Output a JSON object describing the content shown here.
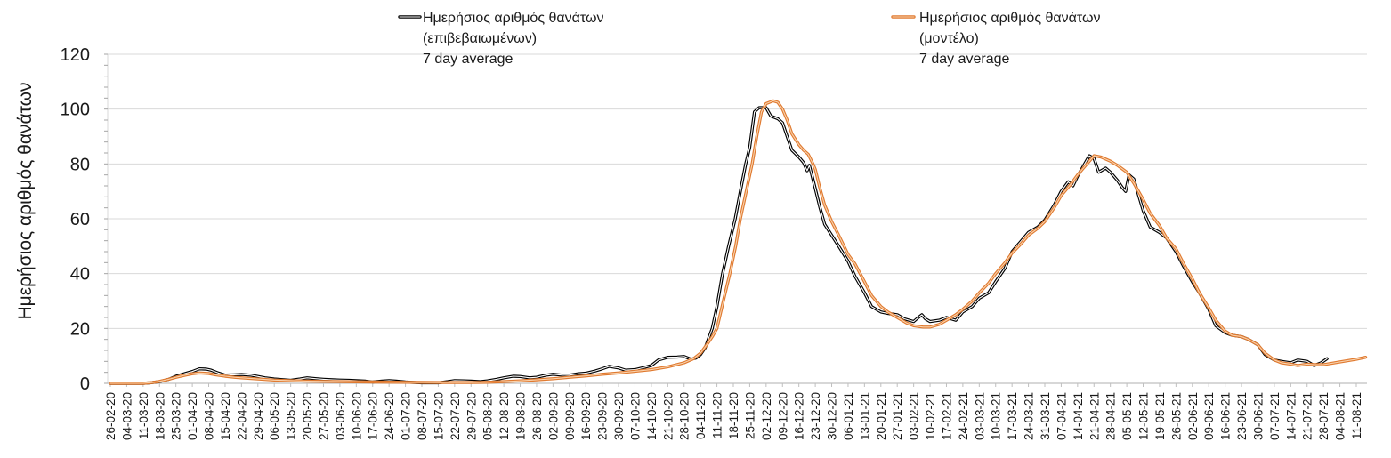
{
  "chart_data": {
    "type": "line",
    "title": "",
    "xlabel": "",
    "ylabel": "Ημερήσιος αριθμός θανάτων",
    "ylim": [
      0,
      120
    ],
    "yticks": [
      0,
      20,
      40,
      60,
      80,
      100,
      120
    ],
    "y_minor_step": 4,
    "grid": true,
    "legend_position": "top",
    "xlim": [
      0,
      536
    ],
    "xtick_step_days": 7,
    "xtick_labels": [
      "26-02-20",
      "04-03-20",
      "11-03-20",
      "18-03-20",
      "25-03-20",
      "01-04-20",
      "08-04-20",
      "15-04-20",
      "22-04-20",
      "29-04-20",
      "06-05-20",
      "13-05-20",
      "20-05-20",
      "27-05-20",
      "03-06-20",
      "10-06-20",
      "17-06-20",
      "24-06-20",
      "01-07-20",
      "08-07-20",
      "15-07-20",
      "22-07-20",
      "29-07-20",
      "05-08-20",
      "12-08-20",
      "19-08-20",
      "26-08-20",
      "02-09-20",
      "09-09-20",
      "16-09-20",
      "23-09-20",
      "30-09-20",
      "07-10-20",
      "14-10-20",
      "21-10-20",
      "28-10-20",
      "04-11-20",
      "11-11-20",
      "18-11-20",
      "25-11-20",
      "02-12-20",
      "09-12-20",
      "16-12-20",
      "23-12-20",
      "30-12-20",
      "06-01-21",
      "13-01-21",
      "20-01-21",
      "27-01-21",
      "03-02-21",
      "10-02-21",
      "17-02-21",
      "24-02-21",
      "03-03-21",
      "10-03-21",
      "17-03-21",
      "24-03-21",
      "31-03-21",
      "07-04-21",
      "14-04-21",
      "21-04-21",
      "28-04-21",
      "05-05-21",
      "12-05-21",
      "19-05-21",
      "26-05-21",
      "02-06-21",
      "09-06-21",
      "16-06-21",
      "23-06-21",
      "30-06-21",
      "07-07-21",
      "14-07-21",
      "21-07-21",
      "28-07-21",
      "04-08-21",
      "11-08-21"
    ],
    "series": [
      {
        "legend": [
          "Ημερήσιος αριθμός θανάτων",
          "(επιβεβαιωμένων)",
          "7 day average"
        ],
        "color": "#000000",
        "highlight": "#ffffff",
        "points": [
          [
            0,
            0
          ],
          [
            7,
            0
          ],
          [
            14,
            0
          ],
          [
            17,
            0.2
          ],
          [
            21,
            0.6
          ],
          [
            25,
            1.5
          ],
          [
            28,
            2.6
          ],
          [
            32,
            3.6
          ],
          [
            35,
            4.3
          ],
          [
            38,
            5.3
          ],
          [
            41,
            5.2
          ],
          [
            43,
            4.8
          ],
          [
            46,
            3.8
          ],
          [
            49,
            3
          ],
          [
            53,
            3.1
          ],
          [
            56,
            3.2
          ],
          [
            60,
            3
          ],
          [
            63,
            2.5
          ],
          [
            66,
            2
          ],
          [
            70,
            1.6
          ],
          [
            74,
            1.3
          ],
          [
            77,
            1.1
          ],
          [
            81,
            1.6
          ],
          [
            84,
            2
          ],
          [
            88,
            1.7
          ],
          [
            91,
            1.5
          ],
          [
            95,
            1.3
          ],
          [
            98,
            1.2
          ],
          [
            102,
            1.1
          ],
          [
            105,
            1
          ],
          [
            109,
            0.8
          ],
          [
            112,
            0.5
          ],
          [
            116,
            0.8
          ],
          [
            119,
            1
          ],
          [
            122,
            0.8
          ],
          [
            126,
            0.5
          ],
          [
            130,
            0.3
          ],
          [
            133,
            0.2
          ],
          [
            140,
            0.2
          ],
          [
            144,
            0.6
          ],
          [
            147,
            1
          ],
          [
            151,
            0.9
          ],
          [
            154,
            0.8
          ],
          [
            158,
            0.6
          ],
          [
            161,
            0.9
          ],
          [
            165,
            1.5
          ],
          [
            168,
            2
          ],
          [
            172,
            2.6
          ],
          [
            175,
            2.5
          ],
          [
            179,
            2
          ],
          [
            182,
            2.2
          ],
          [
            186,
            3
          ],
          [
            189,
            3.3
          ],
          [
            193,
            3
          ],
          [
            196,
            3
          ],
          [
            200,
            3.5
          ],
          [
            203,
            3.7
          ],
          [
            207,
            4.5
          ],
          [
            210,
            5.3
          ],
          [
            213,
            6.2
          ],
          [
            217,
            5.6
          ],
          [
            220,
            4.8
          ],
          [
            224,
            5
          ],
          [
            228,
            5.8
          ],
          [
            231,
            6.5
          ],
          [
            234,
            8.5
          ],
          [
            238,
            9.5
          ],
          [
            242,
            9.6
          ],
          [
            245,
            9.8
          ],
          [
            248,
            8.8
          ],
          [
            250,
            9.2
          ],
          [
            252,
            10.5
          ],
          [
            254,
            13
          ],
          [
            257,
            20
          ],
          [
            259,
            28
          ],
          [
            261.4,
            40
          ],
          [
            264,
            50
          ],
          [
            266.8,
            60
          ],
          [
            269,
            70
          ],
          [
            271.3,
            80
          ],
          [
            273,
            86
          ],
          [
            275,
            99
          ],
          [
            277,
            100.5
          ],
          [
            280,
            100.5
          ],
          [
            282,
            97.5
          ],
          [
            285,
            96.5
          ],
          [
            287,
            95
          ],
          [
            289,
            90
          ],
          [
            291,
            85
          ],
          [
            294,
            82.5
          ],
          [
            296,
            80.5
          ],
          [
            297.5,
            77.5
          ],
          [
            298.5,
            79.5
          ],
          [
            301,
            71
          ],
          [
            303,
            64
          ],
          [
            305,
            58
          ],
          [
            308,
            54
          ],
          [
            311,
            50
          ],
          [
            315,
            44.5
          ],
          [
            318,
            39
          ],
          [
            322,
            33
          ],
          [
            325,
            28
          ],
          [
            329,
            26
          ],
          [
            332,
            25.5
          ],
          [
            336,
            25
          ],
          [
            339,
            23.5
          ],
          [
            343,
            22.5
          ],
          [
            345,
            24
          ],
          [
            346.5,
            25
          ],
          [
            348,
            23.5
          ],
          [
            350,
            22.5
          ],
          [
            354,
            23
          ],
          [
            357,
            24
          ],
          [
            361,
            23
          ],
          [
            364,
            26
          ],
          [
            368,
            28
          ],
          [
            371,
            31
          ],
          [
            375,
            33
          ],
          [
            378,
            37
          ],
          [
            382,
            42
          ],
          [
            385,
            48
          ],
          [
            389,
            52
          ],
          [
            392,
            55
          ],
          [
            396,
            57
          ],
          [
            399,
            59.5
          ],
          [
            403,
            65
          ],
          [
            406,
            70
          ],
          [
            409,
            73.5
          ],
          [
            411,
            72
          ],
          [
            413,
            75.5
          ],
          [
            416,
            80
          ],
          [
            418,
            83
          ],
          [
            420,
            82
          ],
          [
            422,
            77
          ],
          [
            425,
            78.5
          ],
          [
            427,
            77
          ],
          [
            430,
            74
          ],
          [
            432,
            71.5
          ],
          [
            433.5,
            70
          ],
          [
            435,
            76
          ],
          [
            437,
            74.5
          ],
          [
            441,
            63
          ],
          [
            444,
            57
          ],
          [
            448,
            55
          ],
          [
            451,
            53
          ],
          [
            455,
            48
          ],
          [
            458,
            43
          ],
          [
            462,
            37
          ],
          [
            465,
            33
          ],
          [
            469,
            27
          ],
          [
            472,
            21
          ],
          [
            476,
            18.5
          ],
          [
            479,
            17.5
          ],
          [
            483,
            17
          ],
          [
            486,
            16
          ],
          [
            490,
            14
          ],
          [
            493,
            10.5
          ],
          [
            497,
            8.5
          ],
          [
            500,
            8
          ],
          [
            504,
            7.5
          ],
          [
            507,
            8.5
          ],
          [
            511,
            8
          ],
          [
            514,
            6.5
          ],
          [
            517,
            7.5
          ],
          [
            519.5,
            9
          ]
        ]
      },
      {
        "legend": [
          "Ημερήσιος αριθμός θανάτων",
          "(μοντέλο)",
          "7 day average"
        ],
        "color": "#e07a30",
        "highlight": "#f9d3ae",
        "points": [
          [
            0,
            0
          ],
          [
            14,
            0
          ],
          [
            18,
            0.3
          ],
          [
            21,
            0.7
          ],
          [
            25,
            1.5
          ],
          [
            28,
            2.2
          ],
          [
            32,
            3
          ],
          [
            35,
            3.5
          ],
          [
            38,
            3.8
          ],
          [
            42,
            3.6
          ],
          [
            45,
            3.1
          ],
          [
            49,
            2.6
          ],
          [
            53,
            2.2
          ],
          [
            56,
            2
          ],
          [
            63,
            1.6
          ],
          [
            70,
            1.2
          ],
          [
            77,
            1
          ],
          [
            84,
            0.8
          ],
          [
            91,
            0.7
          ],
          [
            98,
            0.6
          ],
          [
            112,
            0.5
          ],
          [
            126,
            0.4
          ],
          [
            140,
            0.3
          ],
          [
            154,
            0.3
          ],
          [
            161,
            0.4
          ],
          [
            168,
            0.6
          ],
          [
            175,
            0.9
          ],
          [
            182,
            1.3
          ],
          [
            189,
            1.7
          ],
          [
            196,
            2.2
          ],
          [
            203,
            2.7
          ],
          [
            210,
            3.3
          ],
          [
            217,
            3.8
          ],
          [
            224,
            4.4
          ],
          [
            231,
            5
          ],
          [
            238,
            6
          ],
          [
            245,
            7.5
          ],
          [
            249,
            9
          ],
          [
            252,
            11
          ],
          [
            255,
            14.5
          ],
          [
            257,
            17
          ],
          [
            259,
            20
          ],
          [
            262,
            31
          ],
          [
            264.5,
            40
          ],
          [
            267,
            50
          ],
          [
            269,
            60
          ],
          [
            271.5,
            70
          ],
          [
            274,
            80
          ],
          [
            276,
            90
          ],
          [
            278,
            99
          ],
          [
            280,
            102
          ],
          [
            283,
            103
          ],
          [
            285,
            102.5
          ],
          [
            287,
            100
          ],
          [
            289,
            96
          ],
          [
            291,
            91
          ],
          [
            294,
            87
          ],
          [
            296,
            85
          ],
          [
            298,
            83.5
          ],
          [
            300,
            80
          ],
          [
            301,
            78
          ],
          [
            303,
            71
          ],
          [
            305,
            65
          ],
          [
            308,
            59
          ],
          [
            311,
            54
          ],
          [
            315,
            47
          ],
          [
            318,
            43.5
          ],
          [
            322,
            37
          ],
          [
            325,
            32
          ],
          [
            329,
            28
          ],
          [
            332,
            26
          ],
          [
            336,
            24
          ],
          [
            340,
            22
          ],
          [
            343,
            21
          ],
          [
            347,
            20.5
          ],
          [
            350,
            20.5
          ],
          [
            354,
            21.5
          ],
          [
            357,
            23
          ],
          [
            361,
            25
          ],
          [
            364,
            27
          ],
          [
            368,
            30
          ],
          [
            371,
            33
          ],
          [
            375,
            36.5
          ],
          [
            378,
            40
          ],
          [
            382,
            44
          ],
          [
            385,
            47.5
          ],
          [
            389,
            51
          ],
          [
            392,
            54
          ],
          [
            396,
            56.5
          ],
          [
            399,
            59
          ],
          [
            403,
            64
          ],
          [
            406,
            68.5
          ],
          [
            410,
            72.5
          ],
          [
            413,
            76
          ],
          [
            417,
            80
          ],
          [
            420,
            83
          ],
          [
            423,
            82.5
          ],
          [
            427,
            81
          ],
          [
            430,
            79.5
          ],
          [
            434,
            77
          ],
          [
            437,
            73
          ],
          [
            441,
            67
          ],
          [
            444,
            62
          ],
          [
            448,
            57.5
          ],
          [
            451,
            53
          ],
          [
            455,
            49
          ],
          [
            458,
            44
          ],
          [
            462,
            38
          ],
          [
            465,
            33
          ],
          [
            469,
            27.5
          ],
          [
            472,
            23
          ],
          [
            476,
            19
          ],
          [
            479,
            17.5
          ],
          [
            483,
            17
          ],
          [
            486,
            16
          ],
          [
            490,
            14
          ],
          [
            493,
            11
          ],
          [
            497,
            8.5
          ],
          [
            500,
            7.5
          ],
          [
            504,
            7
          ],
          [
            507,
            6.5
          ],
          [
            511,
            7
          ],
          [
            514,
            6.8
          ],
          [
            518,
            6.8
          ],
          [
            525,
            7.8
          ],
          [
            532,
            8.8
          ],
          [
            536,
            9.5
          ]
        ]
      }
    ]
  }
}
